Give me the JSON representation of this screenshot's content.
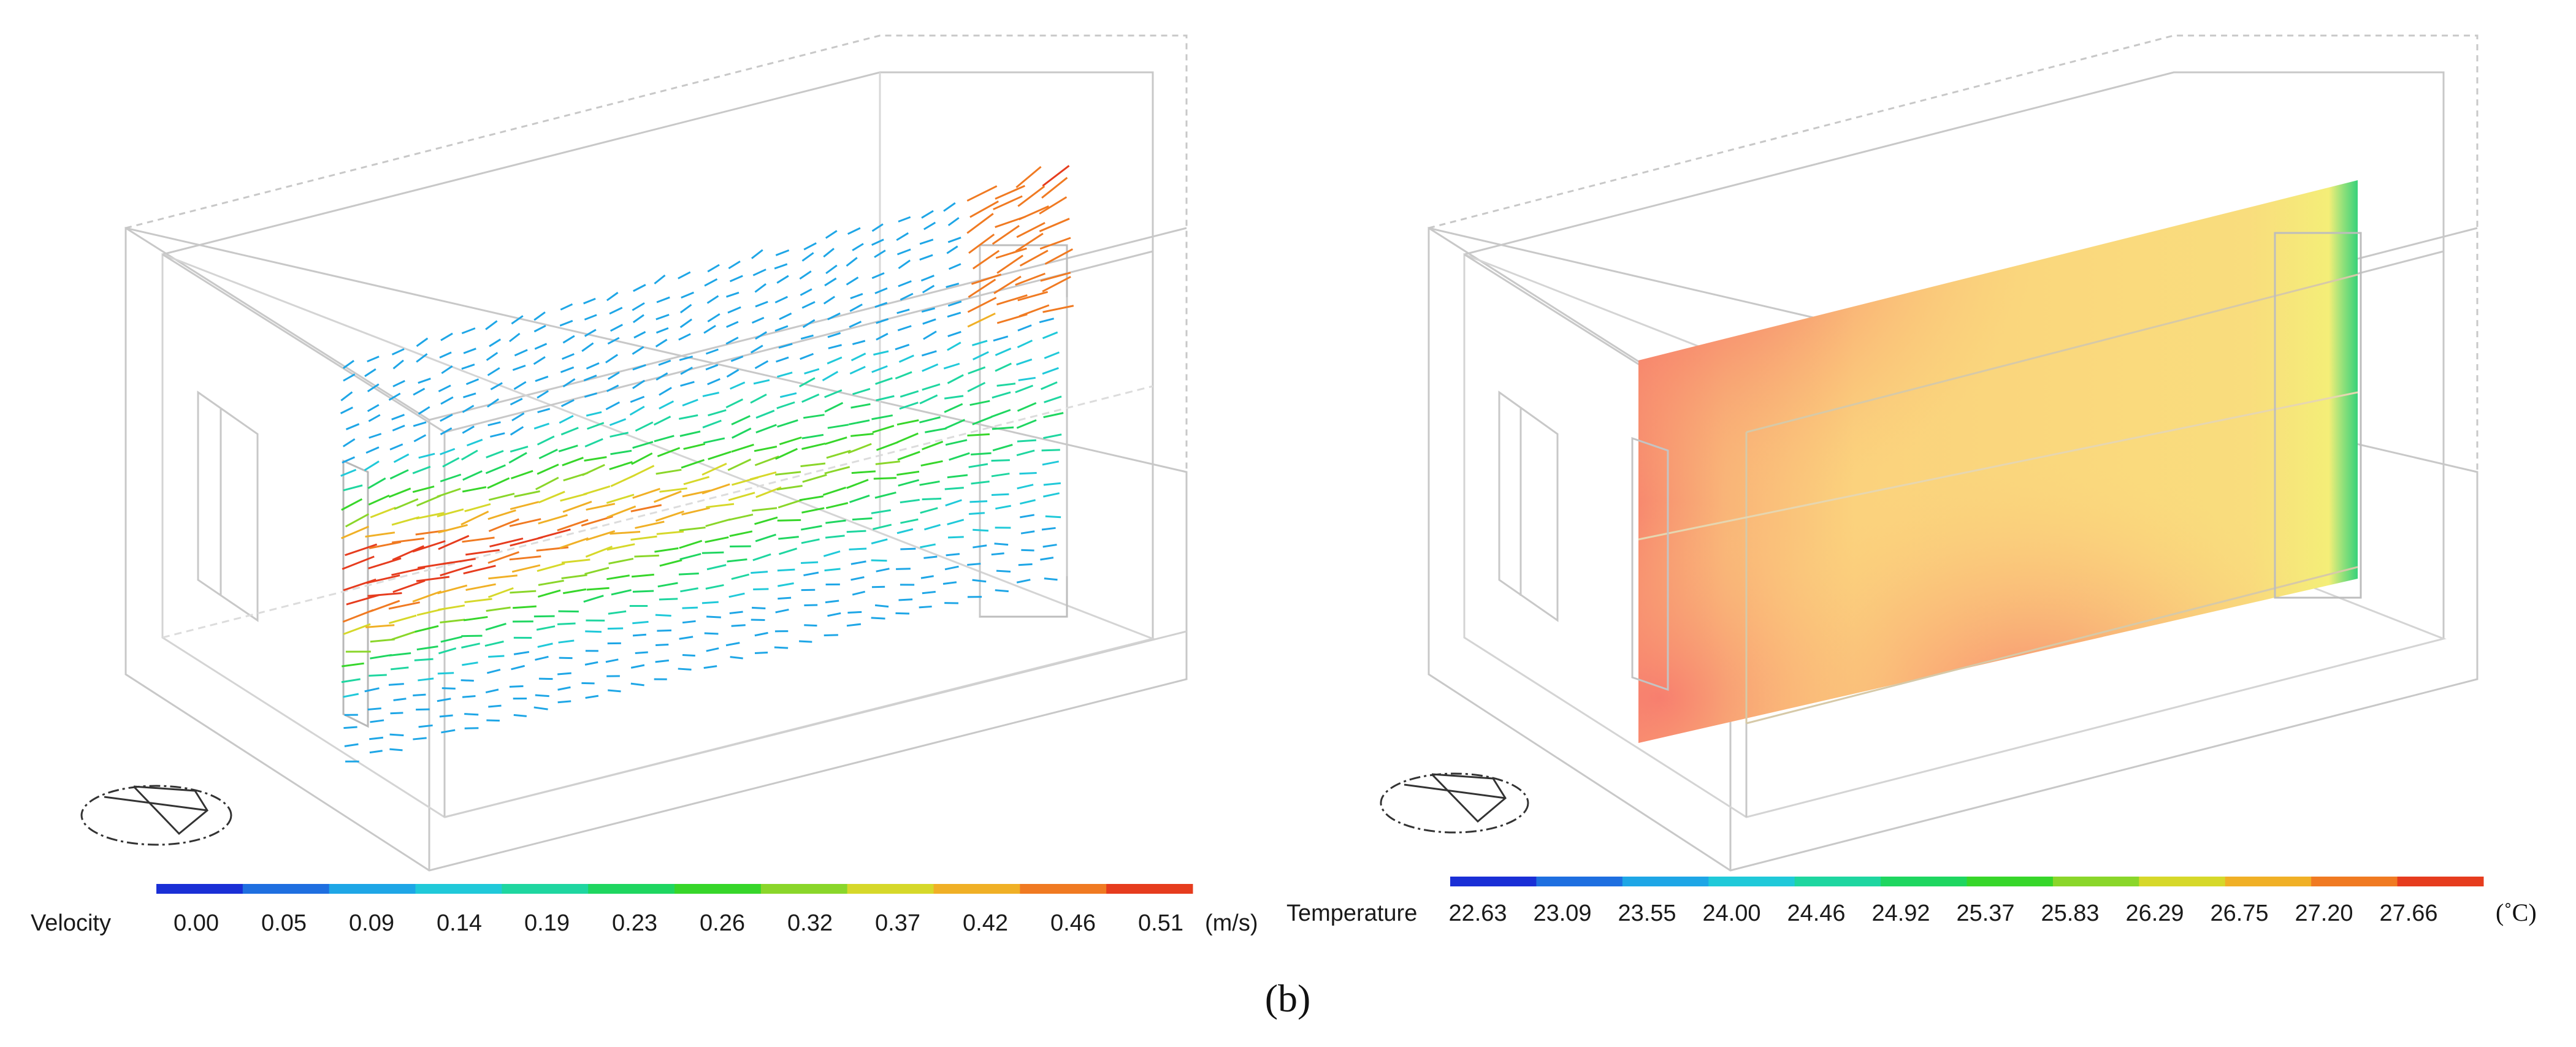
{
  "figure_label": "(b)",
  "left_panel": {
    "legend": {
      "title": "Velocity",
      "unit": "(m/s)",
      "ticks": [
        "0.00",
        "0.05",
        "0.09",
        "0.14",
        "0.19",
        "0.23",
        "0.26",
        "0.32",
        "0.37",
        "0.42",
        "0.46",
        "0.51"
      ],
      "colors": [
        "#1a2fd6",
        "#1f6fe0",
        "#1ea6e6",
        "#20c9d9",
        "#1fd6a0",
        "#1fd660",
        "#37d62a",
        "#8ad62a",
        "#d6d82a",
        "#f0b026",
        "#f07a22",
        "#e63c1e"
      ]
    }
  },
  "right_panel": {
    "legend": {
      "title": "Temperature",
      "unit": "(˚C)",
      "ticks": [
        "22.63",
        "23.09",
        "23.55",
        "24.00",
        "24.46",
        "24.92",
        "25.37",
        "25.83",
        "26.29",
        "26.75",
        "27.20",
        "27.66"
      ],
      "colors": [
        "#1a2fd6",
        "#1f6fe0",
        "#1ea6e6",
        "#20c9d9",
        "#1fd6a0",
        "#1fd660",
        "#37d62a",
        "#8ad62a",
        "#d6d82a",
        "#f0b026",
        "#f07a22",
        "#e63c1e"
      ]
    },
    "plane_colors": {
      "base": "#f8d77a",
      "hot": "#f77b6e",
      "cool": "#38d27a"
    }
  }
}
